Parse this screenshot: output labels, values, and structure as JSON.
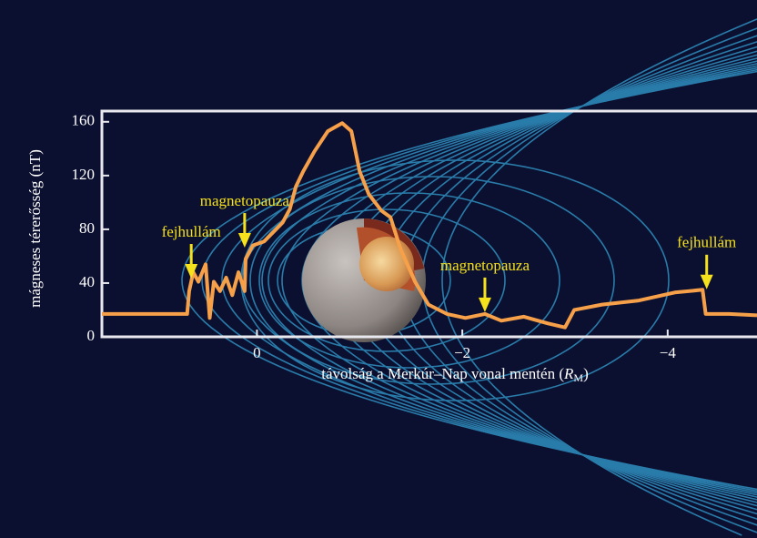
{
  "chart_data": {
    "type": "line",
    "xlabel_parts": [
      "távolság a Merkúr–Nap vonal mentén (",
      "R",
      "M",
      ")"
    ],
    "ylabel": "mágneses térerősség (nT)",
    "xlim": [
      1.51,
      -4.87
    ],
    "ylim": [
      0,
      168
    ],
    "xticks": [
      0,
      {
        "value": -2,
        "label": "−2"
      },
      {
        "value": -4,
        "label": "−4"
      }
    ],
    "yticks": [
      0,
      40,
      80,
      120,
      160
    ],
    "color": "#f7a04a",
    "x": [
      1.51,
      1.17,
      0.68,
      0.66,
      0.62,
      0.57,
      0.5,
      0.46,
      0.42,
      0.36,
      0.3,
      0.24,
      0.18,
      0.12,
      0.11,
      0.04,
      -0.07,
      -0.16,
      -0.25,
      -0.32,
      -0.38,
      -0.45,
      -0.56,
      -0.69,
      -0.83,
      -0.92,
      -1.0,
      -1.09,
      -1.21,
      -1.3,
      -1.4,
      -1.54,
      -1.67,
      -1.85,
      -2.03,
      -2.22,
      -2.38,
      -2.6,
      -2.83,
      -3.0,
      -3.09,
      -3.36,
      -3.72,
      -4.07,
      -4.34,
      -4.37,
      -4.6,
      -4.87
    ],
    "values": [
      17,
      17,
      17,
      34,
      48,
      41,
      54,
      14,
      41,
      34,
      44,
      31,
      48,
      34,
      58,
      68,
      71,
      78,
      85,
      95,
      112,
      123,
      138,
      153,
      159,
      153,
      123,
      106,
      94,
      89,
      65,
      41,
      24,
      17,
      14,
      17,
      12,
      15,
      10,
      7,
      20,
      24,
      27,
      33,
      35,
      17,
      17,
      16
    ],
    "annotations": [
      {
        "text": "fejhullám",
        "x": 0.64,
        "y": 42
      },
      {
        "text": "magnetopauza",
        "x": 0.12,
        "y": 65
      },
      {
        "text": "magnetopauza",
        "x": -2.22,
        "y": 17
      },
      {
        "text": "fejhullám",
        "x": -4.38,
        "y": 34
      }
    ],
    "annotation_color": "#f5e11c"
  }
}
